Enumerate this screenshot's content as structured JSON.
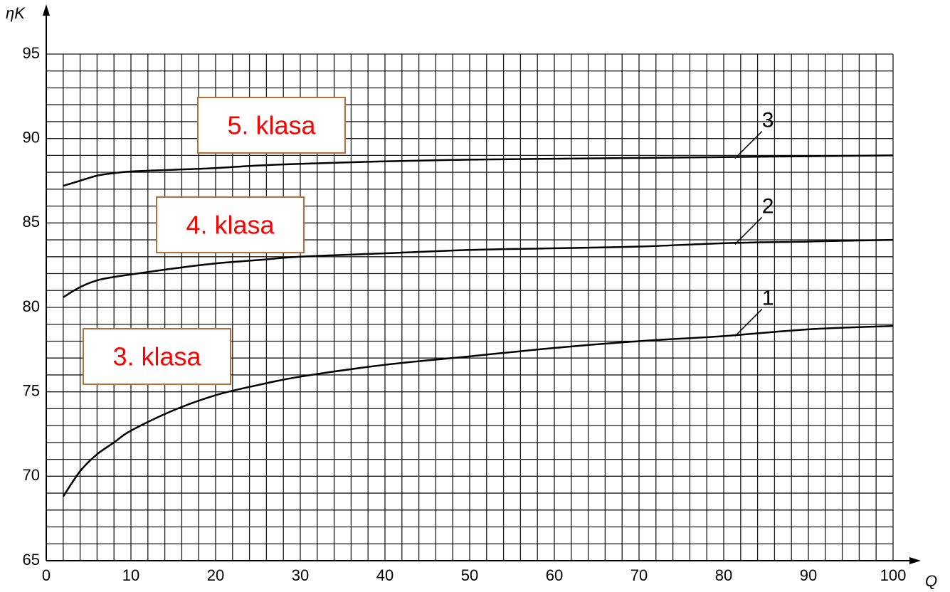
{
  "chart_data": {
    "type": "line",
    "y_label": "ηK",
    "x_label": "Q",
    "x": [
      2,
      4,
      6,
      8,
      10,
      15,
      20,
      25,
      30,
      40,
      50,
      60,
      70,
      80,
      90,
      100
    ],
    "series": [
      {
        "name": "1",
        "color": "#000000",
        "values": [
          68.8,
          70.3,
          71.3,
          72.0,
          72.7,
          73.9,
          74.8,
          75.4,
          75.9,
          76.6,
          77.1,
          77.6,
          78.0,
          78.3,
          78.7,
          78.9
        ]
      },
      {
        "name": "2",
        "color": "#000000",
        "values": [
          80.6,
          81.2,
          81.6,
          81.8,
          81.95,
          82.3,
          82.6,
          82.8,
          83.0,
          83.2,
          83.4,
          83.5,
          83.6,
          83.8,
          83.9,
          84.0
        ]
      },
      {
        "name": "3",
        "color": "#000000",
        "values": [
          87.2,
          87.5,
          87.8,
          87.95,
          88.05,
          88.15,
          88.25,
          88.4,
          88.5,
          88.65,
          88.75,
          88.8,
          88.85,
          88.9,
          88.95,
          89.0
        ]
      }
    ],
    "annotations": [
      "5. klasa",
      "4. klasa",
      "3. klasa"
    ],
    "xlim": [
      0,
      100
    ],
    "xticks": [
      0,
      10,
      20,
      30,
      40,
      50,
      60,
      70,
      80,
      90,
      100
    ],
    "ylim": [
      65,
      95
    ],
    "yticks": [
      65,
      70,
      75,
      80,
      85,
      90,
      95
    ],
    "grid": true
  }
}
